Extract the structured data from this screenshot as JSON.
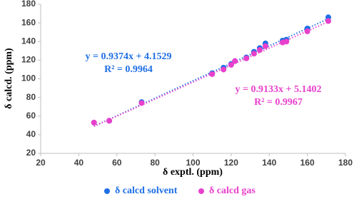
{
  "chart_data": {
    "type": "scatter",
    "x_label": "δ exptl. (ppm)",
    "y_label": "δ calcd. (ppm)",
    "xlim": [
      20,
      180
    ],
    "xticks": [
      20,
      40,
      60,
      80,
      100,
      120,
      140,
      160,
      180
    ],
    "ylim": [
      20,
      180
    ],
    "yticks": [
      20,
      40,
      60,
      80,
      100,
      120,
      140,
      160,
      180
    ],
    "legend": "bottom",
    "series": [
      {
        "name": "δ calcd solvent",
        "color": "#1f6fe5",
        "x": [
          48,
          56,
          73,
          110,
          116,
          120,
          122,
          128,
          132,
          135,
          138,
          147,
          149,
          160,
          171
        ],
        "values": [
          53,
          55,
          75,
          106,
          112,
          116,
          119,
          123,
          129,
          133,
          138,
          141,
          142,
          154,
          166
        ],
        "trendline": {
          "slope": 0.9374,
          "intercept": 4.1529,
          "equation": "y = 0.9374x + 4.1529",
          "r2": "R² = 0.9964"
        }
      },
      {
        "name": "δ calcd gas",
        "color": "#e840cc",
        "x": [
          48,
          56,
          73,
          110,
          116,
          120,
          122,
          128,
          132,
          135,
          138,
          147,
          149,
          160,
          171
        ],
        "values": [
          53,
          55,
          74,
          105,
          110,
          115,
          119,
          122,
          127,
          131,
          135,
          139,
          140,
          151,
          162
        ],
        "trendline": {
          "slope": 0.9133,
          "intercept": 5.1402,
          "equation": "y = 0.9133x + 5.1402",
          "r2": "R² = 0.9967"
        }
      }
    ]
  }
}
